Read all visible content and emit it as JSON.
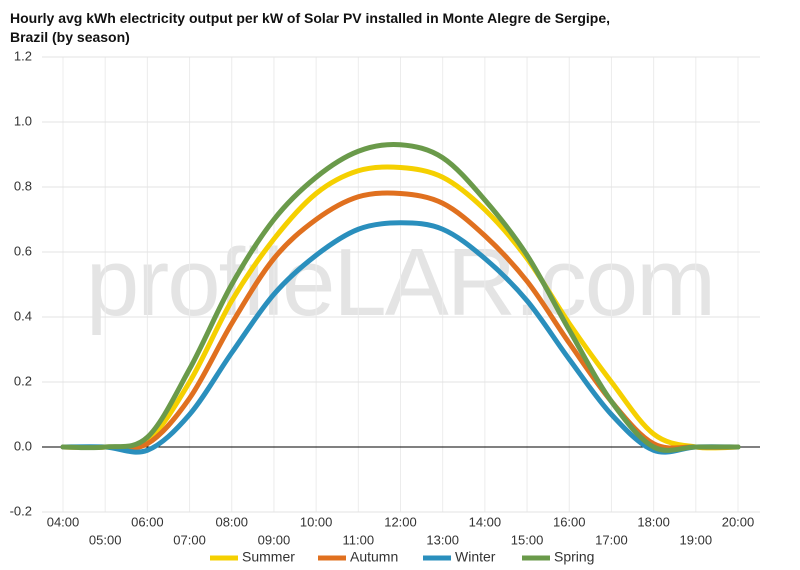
{
  "chart_data": {
    "type": "line",
    "title": "Hourly avg kWh electricity output per kW of Solar PV installed in Monte Alegre de Sergipe, Brazil (by season)",
    "watermark": [
      "profile",
      "LAR.com"
    ],
    "categories": [
      "04:00",
      "05:00",
      "06:00",
      "07:00",
      "08:00",
      "09:00",
      "10:00",
      "11:00",
      "12:00",
      "13:00",
      "14:00",
      "15:00",
      "16:00",
      "17:00",
      "18:00",
      "19:00",
      "20:00"
    ],
    "series": [
      {
        "name": "Summer",
        "color": "#f5d000",
        "values": [
          0,
          0,
          0.02,
          0.2,
          0.45,
          0.64,
          0.78,
          0.85,
          0.86,
          0.83,
          0.73,
          0.58,
          0.38,
          0.2,
          0.04,
          0,
          0
        ]
      },
      {
        "name": "Autumn",
        "color": "#e0701f",
        "values": [
          0,
          0,
          0.01,
          0.15,
          0.38,
          0.58,
          0.7,
          0.77,
          0.78,
          0.75,
          0.65,
          0.51,
          0.32,
          0.14,
          0.01,
          0,
          0
        ]
      },
      {
        "name": "Winter",
        "color": "#2a8fbd",
        "values": [
          0,
          0,
          -0.01,
          0.1,
          0.29,
          0.47,
          0.59,
          0.67,
          0.69,
          0.67,
          0.58,
          0.45,
          0.27,
          0.1,
          -0.01,
          0,
          0
        ]
      },
      {
        "name": "Spring",
        "color": "#6a9a4a",
        "values": [
          0,
          0,
          0.03,
          0.24,
          0.5,
          0.7,
          0.83,
          0.91,
          0.93,
          0.89,
          0.76,
          0.59,
          0.36,
          0.14,
          0,
          0,
          0
        ]
      }
    ],
    "ylim": [
      -0.2,
      1.2
    ],
    "yticks": [
      -0.2,
      {
        "value": 0,
        "label": "0.0"
      },
      0.2,
      0.4,
      0.6,
      0.8,
      {
        "value": 1,
        "label": "1.0"
      },
      1.2
    ],
    "grid": true,
    "legend": "bottom"
  }
}
